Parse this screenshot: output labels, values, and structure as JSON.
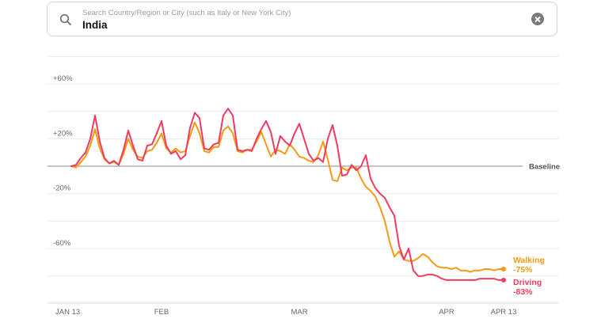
{
  "search": {
    "placeholder": "Search Country/Region or City (such as Italy or New York City)",
    "value": "India"
  },
  "chart_data": {
    "type": "line",
    "y_ticks": [
      {
        "label": "+60%",
        "value": 60
      },
      {
        "label": "+20%",
        "value": 20
      },
      {
        "label": "-20%",
        "value": -20
      },
      {
        "label": "-60%",
        "value": -60
      }
    ],
    "ylim": [
      -100,
      80
    ],
    "x_ticks": [
      {
        "label": "JAN 13",
        "day": 0
      },
      {
        "label": "FEB",
        "day": 19
      },
      {
        "label": "MAR",
        "day": 48
      },
      {
        "label": "APR",
        "day": 79
      },
      {
        "label": "APR 13",
        "day": 91
      }
    ],
    "xlim": [
      0,
      91
    ],
    "baseline_label": "Baseline",
    "series": [
      {
        "name": "Walking",
        "change_label": "-75%",
        "color": "#f59a12",
        "values": [
          0,
          -1,
          3,
          7,
          15,
          27,
          13,
          5,
          2,
          3,
          1,
          9,
          20,
          12,
          7,
          6,
          11,
          12,
          17,
          24,
          13,
          10,
          13,
          10,
          11,
          22,
          32,
          24,
          11,
          10,
          14,
          14,
          26,
          29,
          24,
          11,
          10,
          12,
          12,
          18,
          25,
          16,
          7,
          12,
          11,
          9,
          16,
          12,
          7,
          6,
          4,
          3,
          8,
          18,
          5,
          -10,
          -11,
          -1,
          -3,
          -1,
          -1,
          -9,
          -15,
          -18,
          -22,
          -30,
          -40,
          -55,
          -66,
          -62,
          -68,
          -69,
          -69,
          -67,
          -64,
          -66,
          -70,
          -73,
          -74,
          -74,
          -75,
          -74,
          -76,
          -76,
          -77,
          -76,
          -76,
          -75,
          -75,
          -76,
          -75,
          -75
        ]
      },
      {
        "name": "Driving",
        "change_label": "-83%",
        "color": "#ef3b60",
        "values": [
          0,
          1,
          6,
          10,
          20,
          37,
          18,
          6,
          2,
          4,
          1,
          12,
          26,
          15,
          5,
          4,
          15,
          16,
          24,
          33,
          15,
          9,
          11,
          5,
          8,
          28,
          39,
          35,
          13,
          12,
          16,
          17,
          37,
          42,
          37,
          12,
          11,
          12,
          11,
          20,
          27,
          33,
          25,
          9,
          22,
          18,
          15,
          24,
          31,
          20,
          9,
          4,
          6,
          3,
          20,
          30,
          15,
          -7,
          -6,
          1,
          -3,
          0,
          8,
          -9,
          -16,
          -20,
          -23,
          -30,
          -36,
          -58,
          -68,
          -60,
          -76,
          -80,
          -80,
          -79,
          -79,
          -80,
          -82,
          -83,
          -83,
          -83,
          -83,
          -83,
          -83,
          -83,
          -82,
          -82,
          -82,
          -82,
          -83,
          -83
        ]
      }
    ]
  }
}
